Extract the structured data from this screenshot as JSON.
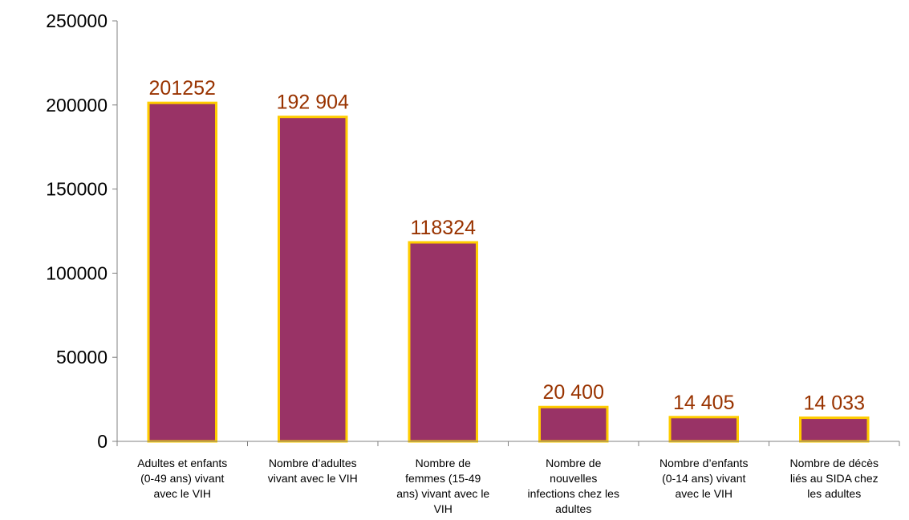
{
  "chart_data": {
    "type": "bar",
    "categories": [
      [
        "Adultes et enfants",
        "(0-49 ans) vivant",
        "avec le VIH"
      ],
      [
        "Nombre d’adultes",
        "vivant avec le VIH"
      ],
      [
        "Nombre de",
        "femmes (15-49",
        "ans) vivant avec le",
        "VIH"
      ],
      [
        "Nombre de",
        "nouvelles",
        "infections chez les",
        "adultes"
      ],
      [
        "Nombre d’enfants",
        "(0-14 ans) vivant",
        "avec le VIH"
      ],
      [
        "Nombre de décès",
        "liés au SIDA chez",
        "les adultes"
      ]
    ],
    "values": [
      201252,
      192904,
      118324,
      20400,
      14405,
      14033
    ],
    "data_labels": [
      "201252",
      "192 904",
      "118324",
      "20 400",
      "14 405",
      "14 033"
    ],
    "yticks": [
      "0",
      "50000",
      "100000",
      "150000",
      "200000",
      "250000"
    ],
    "ylim": [
      0,
      250000
    ],
    "title": "",
    "xlabel": "",
    "ylabel": "",
    "grid": false,
    "legend": "none",
    "colors": {
      "bar_fill": "#993366",
      "bar_border": "#FFCC00",
      "data_label": "#993300",
      "axis": "#808080"
    }
  }
}
